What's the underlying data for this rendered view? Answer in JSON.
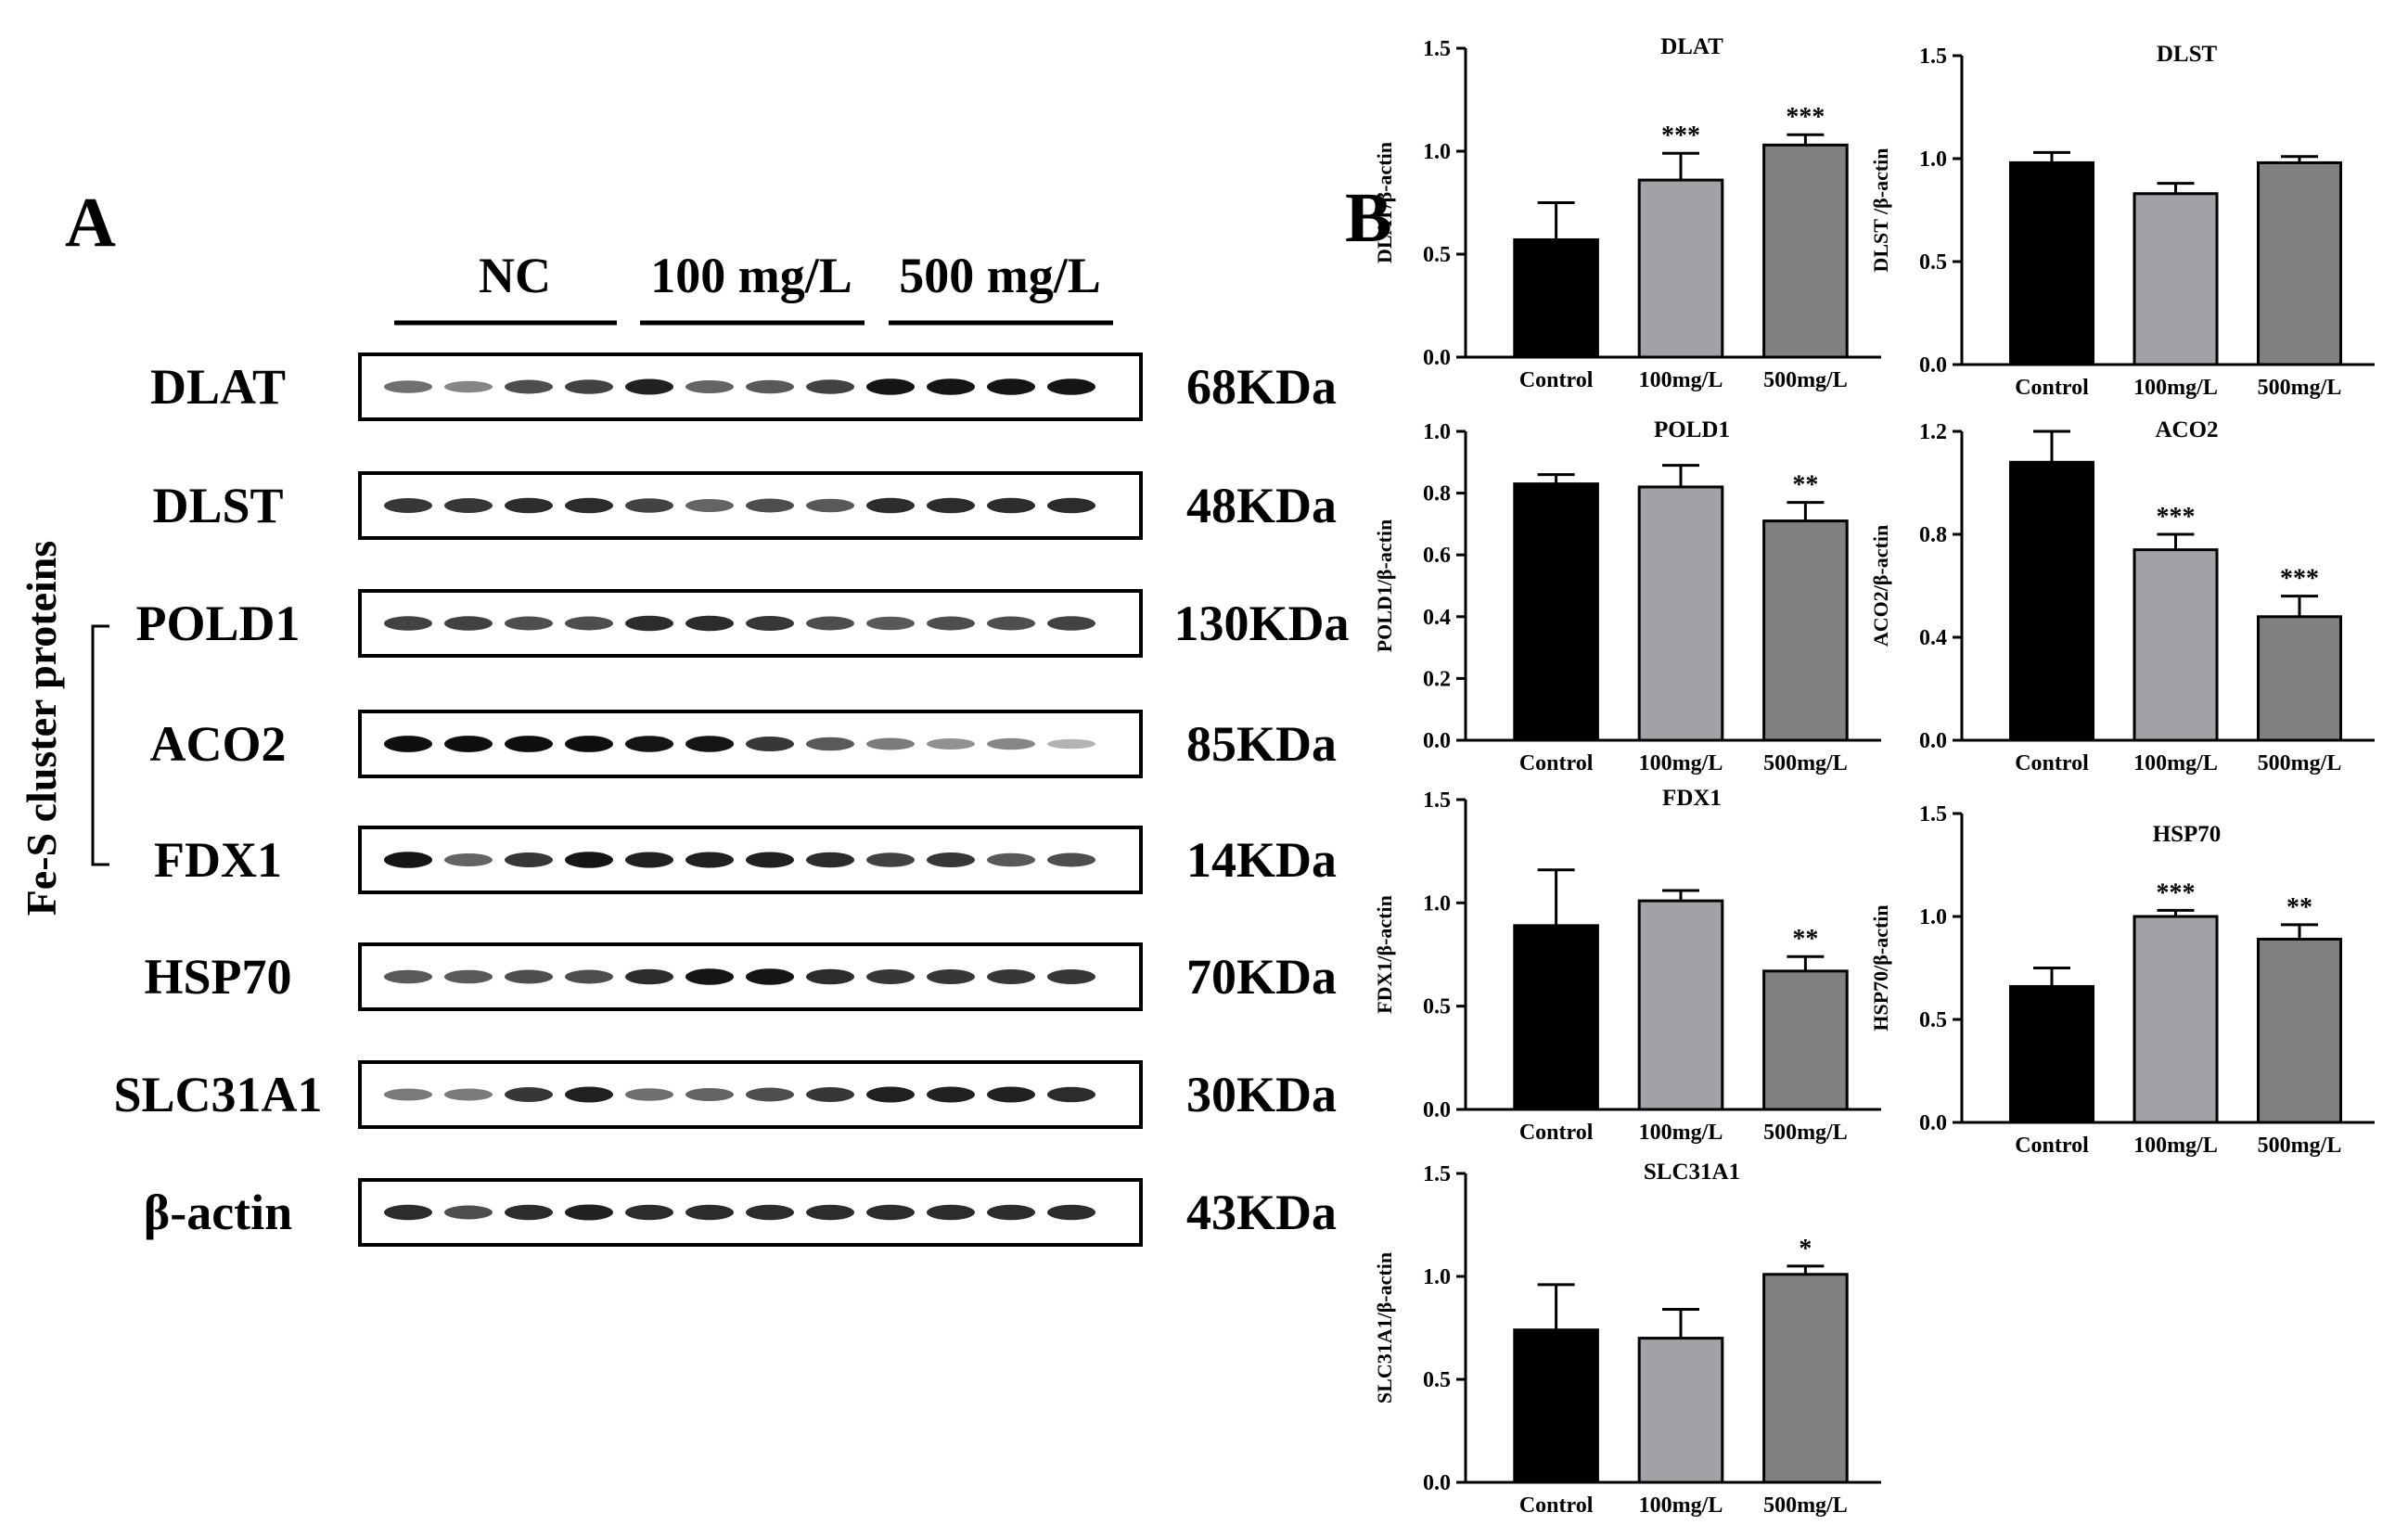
{
  "panelA": {
    "letter": "A",
    "side_label": "Fe-S cluster proteins",
    "groups": [
      "NC",
      "100 mg/L",
      "500 mg/L"
    ],
    "blots": [
      {
        "name": "DLAT",
        "mw": "68KDa",
        "intensity": [
          0.55,
          0.45,
          0.7,
          0.75,
          0.9,
          0.6,
          0.65,
          0.75,
          0.95,
          0.95,
          0.95,
          0.95
        ],
        "bracket": false
      },
      {
        "name": "DLST",
        "mw": "48KDa",
        "intensity": [
          0.8,
          0.8,
          0.85,
          0.85,
          0.75,
          0.6,
          0.7,
          0.65,
          0.85,
          0.85,
          0.85,
          0.85
        ],
        "bracket": false
      },
      {
        "name": "POLD1",
        "mw": "130KDa",
        "intensity": [
          0.75,
          0.75,
          0.7,
          0.7,
          0.85,
          0.85,
          0.8,
          0.7,
          0.65,
          0.7,
          0.7,
          0.75
        ],
        "bracket": true
      },
      {
        "name": "ACO2",
        "mw": "85KDa",
        "intensity": [
          0.98,
          0.98,
          0.98,
          0.98,
          0.95,
          0.95,
          0.8,
          0.65,
          0.5,
          0.4,
          0.45,
          0.25
        ],
        "bracket": true
      },
      {
        "name": "FDX1",
        "mw": "14KDa",
        "intensity": [
          0.95,
          0.6,
          0.8,
          0.95,
          0.9,
          0.9,
          0.9,
          0.85,
          0.75,
          0.8,
          0.65,
          0.7
        ],
        "bracket": true
      },
      {
        "name": "HSP70",
        "mw": "70KDa",
        "intensity": [
          0.65,
          0.65,
          0.7,
          0.7,
          0.85,
          0.95,
          0.95,
          0.85,
          0.8,
          0.8,
          0.8,
          0.8
        ],
        "bracket": false
      },
      {
        "name": "SLC31A1",
        "mw": "30KDa",
        "intensity": [
          0.5,
          0.5,
          0.8,
          0.9,
          0.55,
          0.6,
          0.7,
          0.8,
          0.9,
          0.9,
          0.9,
          0.85
        ],
        "bracket": false
      },
      {
        "name": "β-actin",
        "mw": "43KDa",
        "intensity": [
          0.85,
          0.7,
          0.85,
          0.9,
          0.85,
          0.85,
          0.85,
          0.85,
          0.85,
          0.85,
          0.85,
          0.85
        ],
        "bracket": false
      }
    ]
  },
  "panelB": {
    "letter": "B"
  },
  "chart_data": [
    {
      "type": "bar",
      "title": "DLAT",
      "ylabel": "DLAT/β-actin",
      "categories": [
        "Control",
        "100mg/L",
        "500mg/L"
      ],
      "values": [
        0.57,
        0.86,
        1.03
      ],
      "errors": [
        0.18,
        0.13,
        0.05
      ],
      "significance": [
        "",
        "***",
        "***"
      ],
      "ylim": [
        0,
        1.5
      ],
      "yticks": [
        "0.0",
        "0.5",
        "1.0",
        "1.5"
      ],
      "bar_colors": [
        "#000000",
        "#a2a1a6",
        "#808080"
      ]
    },
    {
      "type": "bar",
      "title": "DLST",
      "ylabel": "DLST /β-actin",
      "categories": [
        "Control",
        "100mg/L",
        "500mg/L"
      ],
      "values": [
        0.98,
        0.83,
        0.98
      ],
      "errors": [
        0.05,
        0.05,
        0.03
      ],
      "significance": [
        "",
        "",
        ""
      ],
      "ylim": [
        0,
        1.5
      ],
      "yticks": [
        "0.0",
        "0.5",
        "1.0",
        "1.5"
      ],
      "bar_colors": [
        "#000000",
        "#a2a1a6",
        "#808080"
      ]
    },
    {
      "type": "bar",
      "title": "POLD1",
      "ylabel": "POLD1/β-actin",
      "categories": [
        "Control",
        "100mg/L",
        "500mg/L"
      ],
      "values": [
        0.83,
        0.82,
        0.71
      ],
      "errors": [
        0.03,
        0.07,
        0.06
      ],
      "significance": [
        "",
        "",
        "**"
      ],
      "ylim": [
        0,
        1.0
      ],
      "yticks": [
        "0.0",
        "0.2",
        "0.4",
        "0.6",
        "0.8",
        "1.0"
      ],
      "bar_colors": [
        "#000000",
        "#a2a1a6",
        "#808080"
      ]
    },
    {
      "type": "bar",
      "title": "ACO2",
      "ylabel": "ACO2/β-actin",
      "categories": [
        "Control",
        "100mg/L",
        "500mg/L"
      ],
      "values": [
        1.08,
        0.74,
        0.48
      ],
      "errors": [
        0.12,
        0.06,
        0.08
      ],
      "significance": [
        "",
        "***",
        "***"
      ],
      "ylim": [
        0,
        1.2
      ],
      "yticks": [
        "0.0",
        "0.4",
        "0.8",
        "1.2"
      ],
      "bar_colors": [
        "#000000",
        "#a2a1a6",
        "#808080"
      ]
    },
    {
      "type": "bar",
      "title": "FDX1",
      "ylabel": "FDX1/β-actin",
      "categories": [
        "Control",
        "100mg/L",
        "500mg/L"
      ],
      "values": [
        0.89,
        1.01,
        0.67
      ],
      "errors": [
        0.27,
        0.05,
        0.07
      ],
      "significance": [
        "",
        "",
        "**"
      ],
      "ylim": [
        0,
        1.5
      ],
      "yticks": [
        "0.0",
        "0.5",
        "1.0",
        "1.5"
      ],
      "bar_colors": [
        "#000000",
        "#a2a1a6",
        "#808080"
      ]
    },
    {
      "type": "bar",
      "title": "HSP70",
      "ylabel": "HSP70/β-actin",
      "categories": [
        "Control",
        "100mg/L",
        "500mg/L"
      ],
      "values": [
        0.66,
        1.0,
        0.89
      ],
      "errors": [
        0.09,
        0.03,
        0.07
      ],
      "significance": [
        "",
        "***",
        "**"
      ],
      "ylim": [
        0,
        1.5
      ],
      "yticks": [
        "0.0",
        "0.5",
        "1.0",
        "1.5"
      ],
      "bar_colors": [
        "#000000",
        "#a2a1a6",
        "#808080"
      ]
    },
    {
      "type": "bar",
      "title": "SLC31A1",
      "ylabel": "SLC31A1/β-actin",
      "categories": [
        "Control",
        "100mg/L",
        "500mg/L"
      ],
      "values": [
        0.74,
        0.7,
        1.01
      ],
      "errors": [
        0.22,
        0.14,
        0.04
      ],
      "significance": [
        "",
        "",
        "*"
      ],
      "ylim": [
        0,
        1.5
      ],
      "yticks": [
        "0.0",
        "0.5",
        "1.0",
        "1.5"
      ],
      "bar_colors": [
        "#000000",
        "#a2a1a6",
        "#808080"
      ]
    }
  ]
}
